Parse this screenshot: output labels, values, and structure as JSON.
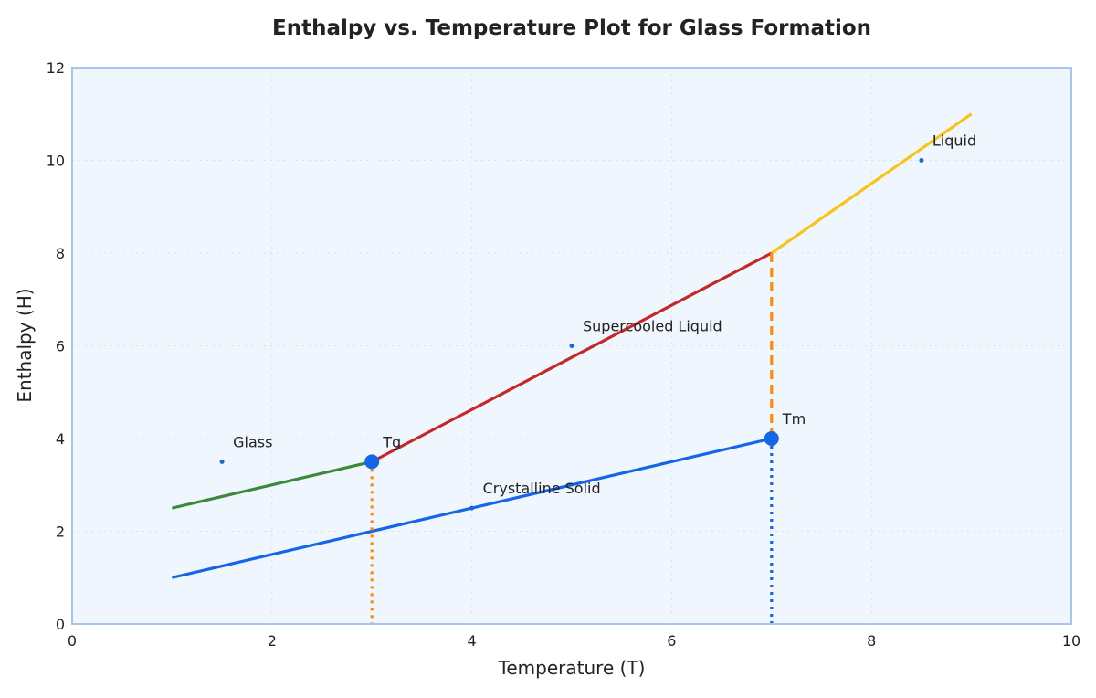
{
  "chart_data": {
    "type": "line",
    "title": "Enthalpy vs. Temperature Plot for Glass Formation",
    "xlabel": "Temperature (T)",
    "ylabel": "Enthalpy (H)",
    "xlim": [
      0,
      10
    ],
    "ylim": [
      0,
      12
    ],
    "xticks": [
      0,
      2,
      4,
      6,
      8,
      10
    ],
    "yticks": [
      0,
      2,
      4,
      6,
      8,
      10,
      12
    ],
    "grid": true,
    "series": [
      {
        "x": [
          1,
          3
        ],
        "y": [
          2.5,
          3.5
        ],
        "color": "#3a8a3a",
        "style": "solid"
      },
      {
        "x": [
          3,
          7
        ],
        "y": [
          3.5,
          8
        ],
        "color": "#c62828",
        "style": "solid"
      },
      {
        "x": [
          7,
          9
        ],
        "y": [
          8,
          11
        ],
        "color": "#f5c518",
        "style": "solid"
      },
      {
        "x": [
          1,
          7
        ],
        "y": [
          1,
          4
        ],
        "color": "#1565e8",
        "style": "solid"
      },
      {
        "x": [
          7,
          7
        ],
        "y": [
          8,
          4
        ],
        "color": "#ff8c00",
        "style": "dashed"
      },
      {
        "x": [
          7,
          7
        ],
        "y": [
          4,
          0
        ],
        "color": "#1565e8",
        "style": "dotted"
      },
      {
        "x": [
          3,
          3
        ],
        "y": [
          3.5,
          0
        ],
        "color": "#ff8c00",
        "style": "dotted"
      }
    ],
    "points": [
      {
        "label": "Tg",
        "x": 3,
        "y": 3.5
      },
      {
        "label": "Tm",
        "x": 7,
        "y": 4
      }
    ],
    "annotations": [
      {
        "text": "Glass",
        "x": 1.5,
        "y": 3.5
      },
      {
        "text": "Crystalline Solid",
        "x": 4,
        "y": 2.5
      },
      {
        "text": "Supercooled Liquid",
        "x": 5,
        "y": 6
      },
      {
        "text": "Liquid",
        "x": 8.5,
        "y": 10
      }
    ],
    "colors": {
      "plot_bg": "#f0f6fe",
      "frame": "#a8c4f0",
      "point": "#1565e8"
    }
  }
}
